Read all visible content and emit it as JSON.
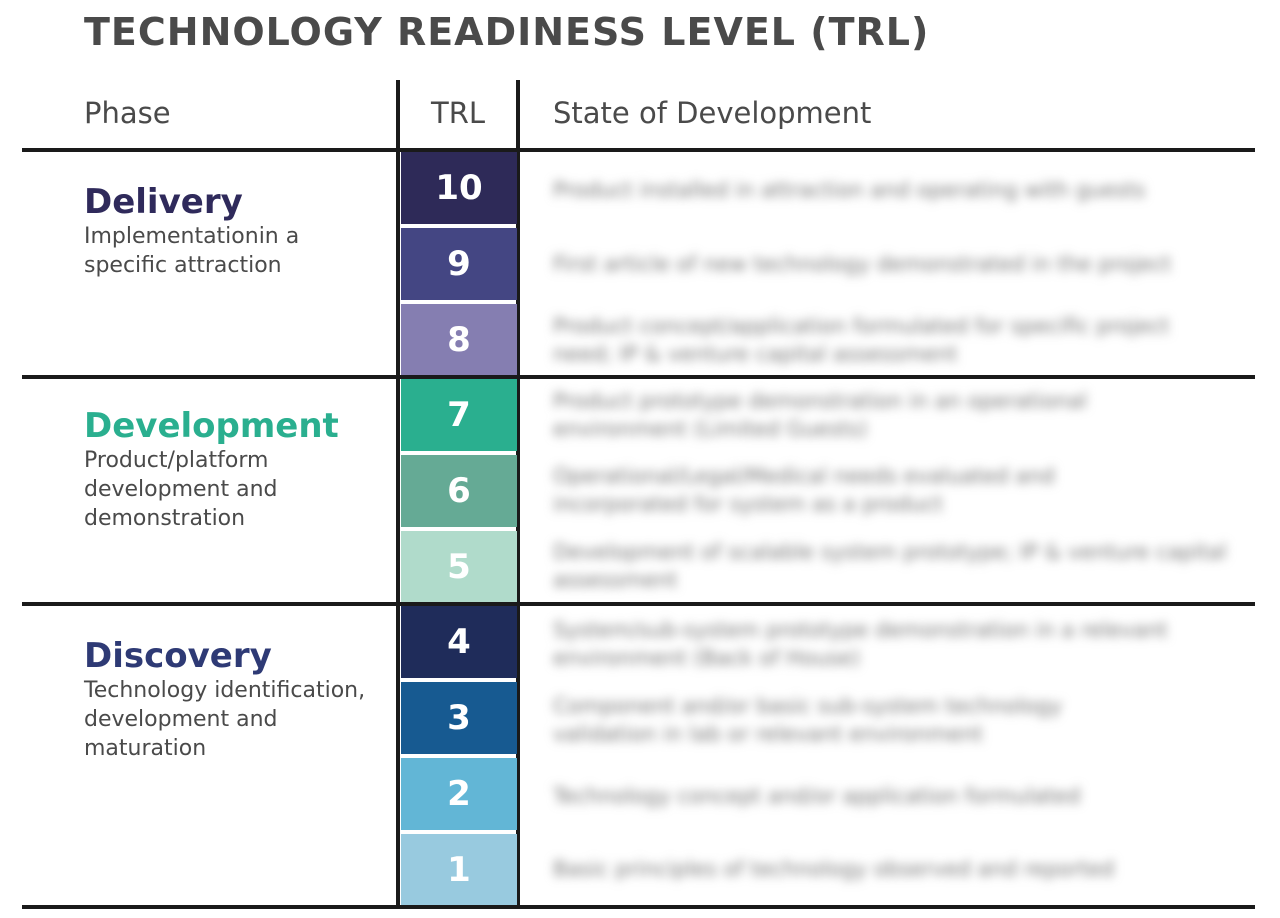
{
  "title": "TECHNOLOGY READINESS LEVEL (TRL)",
  "headers": {
    "phase": "Phase",
    "trl": "TRL",
    "state": "State of Development"
  },
  "phases": [
    {
      "name": "Delivery",
      "description": "Implementationin a specific attraction",
      "color": "#2f2a5b"
    },
    {
      "name": "Development",
      "description": "Product/platform development and demonstration",
      "color": "#2aaf8f"
    },
    {
      "name": "Discovery",
      "description": "Technology identification, development and maturation",
      "color": "#2e3a75"
    }
  ],
  "levels": [
    {
      "trl": "10",
      "color": "#2e2a58",
      "state": "Product installed in attraction and operating with guests"
    },
    {
      "trl": "9",
      "color": "#444683",
      "state": "First article of new technology demonstrated in the project"
    },
    {
      "trl": "8",
      "color": "#857eb1",
      "state": "Product concept/application formulated for specific project need; IP & venture capital assessment"
    },
    {
      "trl": "7",
      "color": "#2aaf8f",
      "state": "Product prototype demonstration in an operational environment (Limited Guests)"
    },
    {
      "trl": "6",
      "color": "#65aa95",
      "state": "Operational/Legal/Medical needs evaluated and incorporated for system as a product"
    },
    {
      "trl": "5",
      "color": "#b0dbcb",
      "state": "Development of scalable system prototype; IP & venture capital assessment"
    },
    {
      "trl": "4",
      "color": "#1f2c5a",
      "state": "System/sub-system prototype demonstration in a relevant environment (Back of House)"
    },
    {
      "trl": "3",
      "color": "#175a91",
      "state": "Component and/or basic sub-system technology validation in lab or relevant environment"
    },
    {
      "trl": "2",
      "color": "#62b6d6",
      "state": "Technology concept and/or application formulated"
    },
    {
      "trl": "1",
      "color": "#98cadf",
      "state": "Basic principles of technology observed and reported"
    }
  ]
}
